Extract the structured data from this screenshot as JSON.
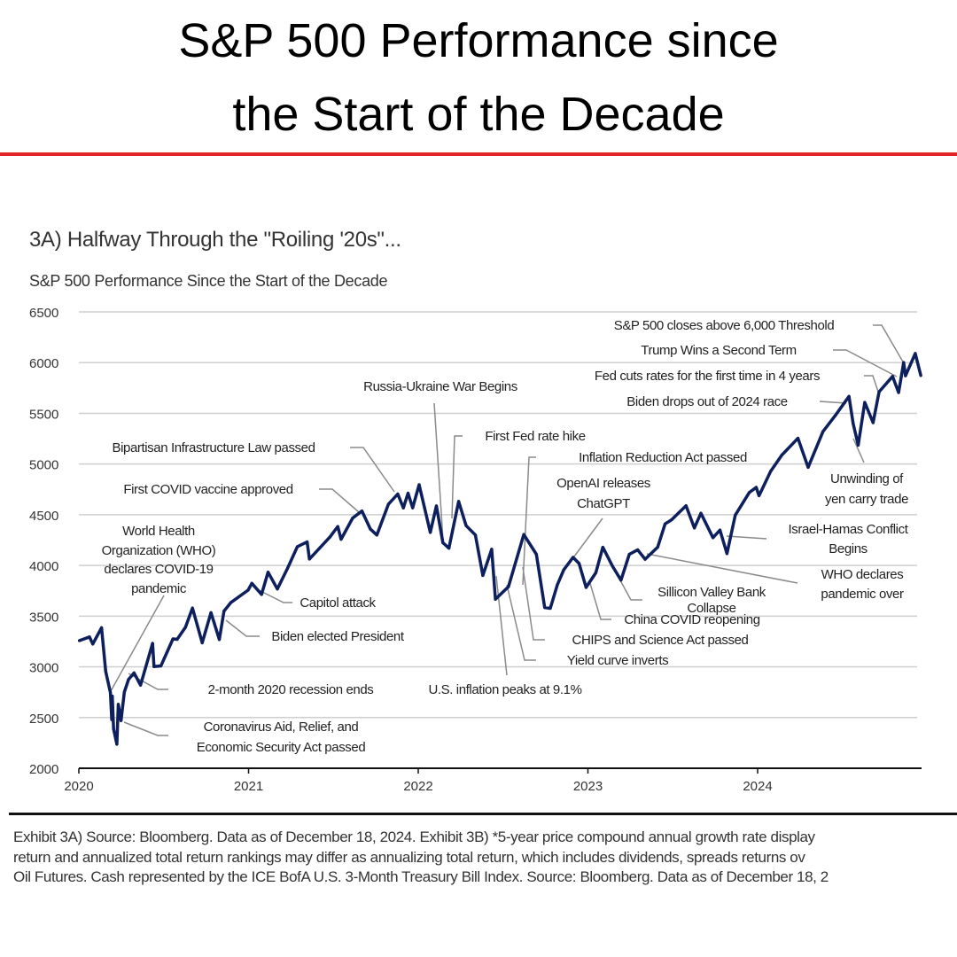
{
  "header": {
    "line1": "S&P 500 Performance since",
    "line2": "the Start of the Decade",
    "accent_color": "#e3242b"
  },
  "chart_data": {
    "type": "line",
    "title": "3A) Halfway Through the \"Roiling '20s\"...",
    "subtitle": "S&P 500 Performance Since the Start of the Decade",
    "xlabel": "",
    "ylabel": "",
    "xlim": [
      "2020-01-01",
      "2024-12-31"
    ],
    "ylim": [
      2000,
      6500
    ],
    "x_ticks": [
      "2020",
      "2021",
      "2022",
      "2023",
      "2024"
    ],
    "y_ticks": [
      "6500",
      "6000",
      "5500",
      "5000",
      "4500",
      "4000",
      "3500",
      "3000",
      "2500",
      "2000"
    ],
    "grid": "horizontal",
    "line_color": "#0d1f5c",
    "series": [
      {
        "points": [
          [
            "2020-01-02",
            3258
          ],
          [
            "2020-01-24",
            3295
          ],
          [
            "2020-01-31",
            3225
          ],
          [
            "2020-02-19",
            3386
          ],
          [
            "2020-02-28",
            2954
          ],
          [
            "2020-03-09",
            2746
          ],
          [
            "2020-03-12",
            2480
          ],
          [
            "2020-03-13",
            2711
          ],
          [
            "2020-03-16",
            2386
          ],
          [
            "2020-03-23",
            2237
          ],
          [
            "2020-03-26",
            2630
          ],
          [
            "2020-04-01",
            2470
          ],
          [
            "2020-04-08",
            2750
          ],
          [
            "2020-04-17",
            2875
          ],
          [
            "2020-04-29",
            2940
          ],
          [
            "2020-05-13",
            2820
          ],
          [
            "2020-06-08",
            3232
          ],
          [
            "2020-06-11",
            3002
          ],
          [
            "2020-06-26",
            3009
          ],
          [
            "2020-07-22",
            3276
          ],
          [
            "2020-07-31",
            3271
          ],
          [
            "2020-08-18",
            3390
          ],
          [
            "2020-09-02",
            3580
          ],
          [
            "2020-09-23",
            3237
          ],
          [
            "2020-10-12",
            3534
          ],
          [
            "2020-10-30",
            3270
          ],
          [
            "2020-11-09",
            3550
          ],
          [
            "2020-11-24",
            3635
          ],
          [
            "2020-12-31",
            3756
          ],
          [
            "2021-01-08",
            3824
          ],
          [
            "2021-01-29",
            3714
          ],
          [
            "2021-02-12",
            3934
          ],
          [
            "2021-03-04",
            3768
          ],
          [
            "2021-03-26",
            3974
          ],
          [
            "2021-04-16",
            4185
          ],
          [
            "2021-05-07",
            4232
          ],
          [
            "2021-05-12",
            4063
          ],
          [
            "2021-06-25",
            4280
          ],
          [
            "2021-07-12",
            4384
          ],
          [
            "2021-07-19",
            4258
          ],
          [
            "2021-08-13",
            4468
          ],
          [
            "2021-09-02",
            4537
          ],
          [
            "2021-09-20",
            4358
          ],
          [
            "2021-10-04",
            4300
          ],
          [
            "2021-10-29",
            4605
          ],
          [
            "2021-11-18",
            4704
          ],
          [
            "2021-11-30",
            4567
          ],
          [
            "2021-12-10",
            4712
          ],
          [
            "2021-12-20",
            4568
          ],
          [
            "2022-01-03",
            4796
          ],
          [
            "2022-01-27",
            4326
          ],
          [
            "2022-02-09",
            4587
          ],
          [
            "2022-02-23",
            4225
          ],
          [
            "2022-03-08",
            4170
          ],
          [
            "2022-03-29",
            4631
          ],
          [
            "2022-04-14",
            4392
          ],
          [
            "2022-05-04",
            4300
          ],
          [
            "2022-05-20",
            3901
          ],
          [
            "2022-06-08",
            4160
          ],
          [
            "2022-06-16",
            3667
          ],
          [
            "2022-07-14",
            3790
          ],
          [
            "2022-08-16",
            4305
          ],
          [
            "2022-09-12",
            4110
          ],
          [
            "2022-09-30",
            3585
          ],
          [
            "2022-10-12",
            3577
          ],
          [
            "2022-10-27",
            3807
          ],
          [
            "2022-11-10",
            3956
          ],
          [
            "2022-11-30",
            4080
          ],
          [
            "2022-12-13",
            4019
          ],
          [
            "2022-12-28",
            3783
          ],
          [
            "2023-01-18",
            3928
          ],
          [
            "2023-02-02",
            4179
          ],
          [
            "2023-02-23",
            3991
          ],
          [
            "2023-03-13",
            3855
          ],
          [
            "2023-03-31",
            4109
          ],
          [
            "2023-04-18",
            4154
          ],
          [
            "2023-05-04",
            4061
          ],
          [
            "2023-05-31",
            4180
          ],
          [
            "2023-06-16",
            4410
          ],
          [
            "2023-06-30",
            4450
          ],
          [
            "2023-07-31",
            4589
          ],
          [
            "2023-08-18",
            4370
          ],
          [
            "2023-09-01",
            4515
          ],
          [
            "2023-09-27",
            4274
          ],
          [
            "2023-10-12",
            4349
          ],
          [
            "2023-10-27",
            4117
          ],
          [
            "2023-11-14",
            4496
          ],
          [
            "2023-12-14",
            4719
          ],
          [
            "2023-12-29",
            4770
          ],
          [
            "2024-01-04",
            4688
          ],
          [
            "2024-01-29",
            4928
          ],
          [
            "2024-02-22",
            5087
          ],
          [
            "2024-03-28",
            5254
          ],
          [
            "2024-04-19",
            4967
          ],
          [
            "2024-05-21",
            5321
          ],
          [
            "2024-06-18",
            5487
          ],
          [
            "2024-07-16",
            5667
          ],
          [
            "2024-07-25",
            5399
          ],
          [
            "2024-08-05",
            5186
          ],
          [
            "2024-08-19",
            5608
          ],
          [
            "2024-09-06",
            5408
          ],
          [
            "2024-09-19",
            5713
          ],
          [
            "2024-10-18",
            5864
          ],
          [
            "2024-10-31",
            5705
          ],
          [
            "2024-11-11",
            6001
          ],
          [
            "2024-11-15",
            5870
          ],
          [
            "2024-12-06",
            6090
          ],
          [
            "2024-12-18",
            5872
          ]
        ]
      }
    ],
    "annotations": [
      {
        "name": "annotation-6000",
        "lines": [
          "S&P 500 closes above 6,000 Threshold"
        ]
      },
      {
        "name": "annotation-trump",
        "lines": [
          "Trump Wins a Second Term"
        ]
      },
      {
        "name": "annotation-fed-cuts",
        "lines": [
          "Fed cuts rates for the first time in 4 years"
        ]
      },
      {
        "name": "annotation-biden-drops",
        "lines": [
          "Biden drops out of 2024 race"
        ]
      },
      {
        "name": "annotation-infrastructure",
        "lines": [
          "Bipartisan Infrastructure Law passed"
        ]
      },
      {
        "name": "annotation-russia-ukraine",
        "lines": [
          "Russia-Ukraine War Begins"
        ]
      },
      {
        "name": "annotation-fed-hike",
        "lines": [
          "First Fed rate hike"
        ]
      },
      {
        "name": "annotation-ira",
        "lines": [
          "Inflation Reduction Act passed"
        ]
      },
      {
        "name": "annotation-chatgpt",
        "lines": [
          "OpenAI releases",
          "ChatGPT"
        ]
      },
      {
        "name": "annotation-vaccine",
        "lines": [
          "First COVID vaccine approved"
        ]
      },
      {
        "name": "annotation-who-pandemic",
        "lines": [
          "World Health",
          "Organization (WHO)",
          "declares COVID-19",
          "pandemic"
        ]
      },
      {
        "name": "annotation-capitol",
        "lines": [
          "Capitol attack"
        ]
      },
      {
        "name": "annotation-biden-elected",
        "lines": [
          "Biden elected President"
        ]
      },
      {
        "name": "annotation-recession-ends",
        "lines": [
          "2-month 2020 recession ends"
        ]
      },
      {
        "name": "annotation-cares",
        "lines": [
          "Coronavirus Aid, Relief, and",
          "Economic Security Act passed"
        ]
      },
      {
        "name": "annotation-inflation-peak",
        "lines": [
          "U.S. inflation peaks at 9.1%"
        ]
      },
      {
        "name": "annotation-yield-curve",
        "lines": [
          "Yield curve inverts"
        ]
      },
      {
        "name": "annotation-chips",
        "lines": [
          "CHIPS and Science Act passed"
        ]
      },
      {
        "name": "annotation-china-reopening",
        "lines": [
          "China COVID reopening"
        ]
      },
      {
        "name": "annotation-svb",
        "lines": [
          "Sillicon Valley Bank",
          "Collapse"
        ]
      },
      {
        "name": "annotation-israel-hamas",
        "lines": [
          "Israel-Hamas Conflict",
          "Begins"
        ]
      },
      {
        "name": "annotation-who-over",
        "lines": [
          "WHO declares",
          "pandemic over"
        ]
      },
      {
        "name": "annotation-yen",
        "lines": [
          "Unwinding of",
          "yen carry trade"
        ]
      }
    ]
  },
  "footer": {
    "lines": [
      "Exhibit 3A) Source: Bloomberg. Data as of December 18, 2024. Exhibit 3B) *5-year price compound annual growth rate display",
      "return and annualized total return rankings may differ as annualizing total return, which includes dividends, spreads returns ov",
      "Oil Futures. Cash represented by the ICE BofA U.S. 3-Month Treasury Bill Index. Source: Bloomberg. Data as of December 18, 2"
    ]
  }
}
